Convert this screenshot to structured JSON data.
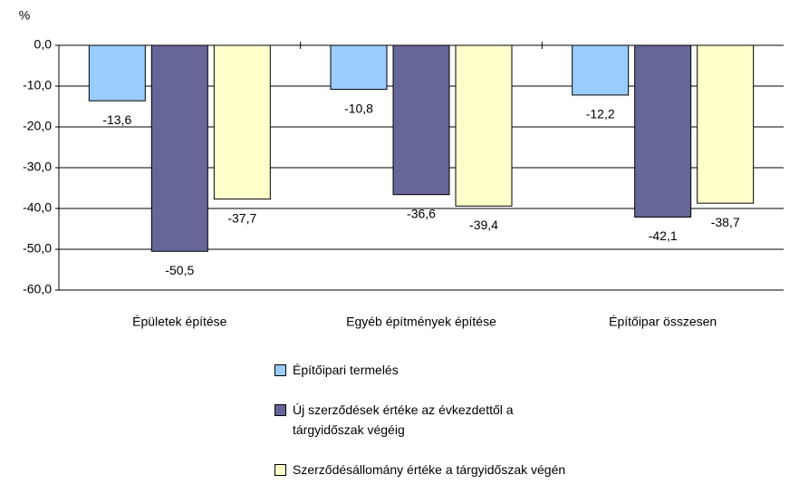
{
  "chart_data": {
    "type": "bar",
    "y_label": "%",
    "categories": [
      "Épületek építése",
      "Egyéb építmények építése",
      "Építőipar összesen"
    ],
    "series": [
      {
        "name": "Építőipari termelés",
        "color": "#99ccff",
        "values": [
          -13.6,
          -10.8,
          -12.2
        ],
        "value_labels": [
          "-13,6",
          "-10,8",
          "-12,2"
        ]
      },
      {
        "name": "Új szerződések értéke az évkezdettől a tárgyidőszak végéig",
        "color": "#666699",
        "values": [
          -50.5,
          -36.6,
          -42.1
        ],
        "value_labels": [
          "-50,5",
          "-36,6",
          "-42,1"
        ]
      },
      {
        "name": "Szerződésállomány értéke a tárgyidőszak végén",
        "color": "#ffffcc",
        "values": [
          -37.7,
          -39.4,
          -38.7
        ],
        "value_labels": [
          "-37,7",
          "-39,4",
          "-38,7"
        ]
      }
    ],
    "ylim": [
      -60,
      0
    ],
    "yticks": [
      {
        "value": 0,
        "label": "0,0"
      },
      {
        "value": -10,
        "label": "-10,0"
      },
      {
        "value": -20,
        "label": "-20,0"
      },
      {
        "value": -30,
        "label": "-30,0"
      },
      {
        "value": -40,
        "label": "-40,0"
      },
      {
        "value": -50,
        "label": "-50,0"
      },
      {
        "value": -60,
        "label": "-60,0"
      }
    ],
    "grid": true,
    "legend": "bottom"
  }
}
